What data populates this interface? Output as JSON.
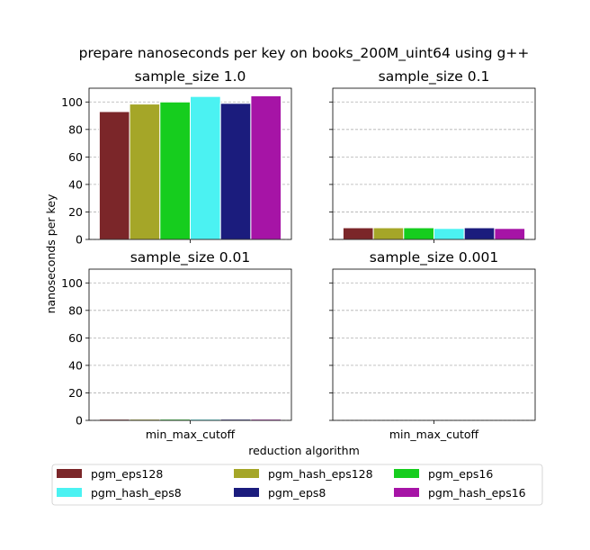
{
  "title": "prepare nanoseconds per key on books_200M_uint64 using g++",
  "xlabel": "reduction algorithm",
  "ylabel": "nanoseconds per key",
  "chart_data": {
    "type": "bar",
    "category": "min_max_cutoff",
    "series": [
      {
        "name": "pgm_eps128",
        "color": "#7b2629"
      },
      {
        "name": "pgm_hash_eps128",
        "color": "#a5a628"
      },
      {
        "name": "pgm_eps16",
        "color": "#16cd1e"
      },
      {
        "name": "pgm_hash_eps8",
        "color": "#4bf2f2"
      },
      {
        "name": "pgm_eps8",
        "color": "#1b1c7d"
      },
      {
        "name": "pgm_hash_eps16",
        "color": "#a614a6"
      }
    ],
    "ylim": [
      0,
      110
    ],
    "yticks": [
      0,
      20,
      40,
      60,
      80,
      100
    ],
    "grid": "y-dashed",
    "legend_placement": "bottom",
    "panels": [
      {
        "title": "sample_size 1.0",
        "values": [
          93,
          98.5,
          100,
          104,
          99,
          104.5
        ]
      },
      {
        "title": "sample_size 0.1",
        "values": [
          8.5,
          8.5,
          8.5,
          8,
          8.5,
          8
        ]
      },
      {
        "title": "sample_size 0.01",
        "values": [
          0.9,
          0.9,
          0.9,
          0.9,
          0.9,
          0.9
        ]
      },
      {
        "title": "sample_size 0.001",
        "values": []
      }
    ]
  }
}
